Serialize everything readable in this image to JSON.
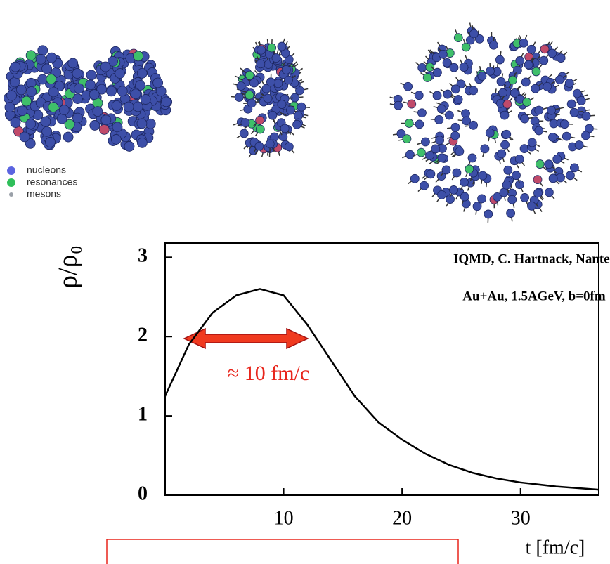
{
  "chart_data": {
    "type": "line",
    "annotations": [
      "IQMD, C. Hartnack, Nantes",
      "Au+Au, 1.5AGeV, b=0fm",
      "≈ 10 fm/c"
    ],
    "y_label": "ρ/ρ₀",
    "x_label": "t  [fm/c]",
    "legend": [
      {
        "name": "nucleons",
        "color": "#5b64e0"
      },
      {
        "name": "resonances",
        "color": "#2fbf5a"
      },
      {
        "name": "mesons",
        "color": "#9aa0a8"
      }
    ],
    "x": [
      0,
      2,
      4,
      6,
      8,
      10,
      12,
      14,
      16,
      18,
      20,
      22,
      24,
      26,
      28,
      30,
      33,
      36.6
    ],
    "series": [
      {
        "color": "#000000",
        "values": [
          1.25,
          1.9,
          2.3,
          2.52,
          2.6,
          2.52,
          2.15,
          1.7,
          1.25,
          0.92,
          0.7,
          0.52,
          0.38,
          0.28,
          0.21,
          0.16,
          0.11,
          0.07
        ]
      }
    ],
    "xlim": [
      0,
      36.6
    ],
    "xticks": [
      10,
      20,
      30
    ],
    "ylim": [
      0,
      3.18
    ],
    "yticks": [
      0,
      1,
      2,
      3
    ]
  }
}
